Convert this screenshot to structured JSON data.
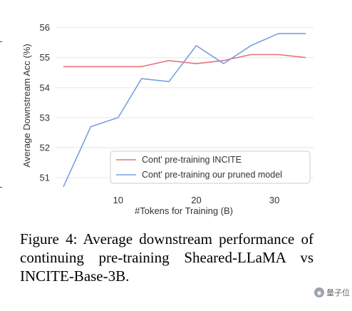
{
  "chart_data": {
    "type": "line",
    "title": "",
    "xlabel": "#Tokens for Training (B)",
    "ylabel": "Average Downstream Acc (%)",
    "xlim": [
      2,
      35
    ],
    "ylim": [
      50.6,
      56.3
    ],
    "xticks": [
      10,
      20,
      30
    ],
    "yticks": [
      51,
      52,
      53,
      54,
      55,
      56
    ],
    "grid": "horizontal",
    "legend_position": "bottom-right",
    "series": [
      {
        "name": "Cont' pre-training INCITE",
        "color": "#e5737b",
        "x": [
          3,
          6.5,
          10,
          13,
          16.5,
          20,
          23.5,
          27,
          30.5,
          34
        ],
        "y": [
          54.7,
          54.7,
          54.7,
          54.7,
          54.9,
          54.8,
          54.9,
          55.1,
          55.1,
          55.0
        ]
      },
      {
        "name": "Cont' pre-training our pruned model",
        "color": "#7b9fe0",
        "x": [
          3,
          6.5,
          10,
          13,
          16.5,
          20,
          23.5,
          27,
          30.5,
          34
        ],
        "y": [
          50.7,
          52.7,
          53.0,
          54.3,
          54.2,
          55.4,
          54.8,
          55.4,
          55.8,
          55.8
        ]
      }
    ]
  },
  "caption": {
    "text": "Figure 4:  Average downstream performance of continuing pre-training Sheared-LLaMA vs INCITE-Base-3B."
  },
  "watermark": {
    "text": "量子位"
  }
}
